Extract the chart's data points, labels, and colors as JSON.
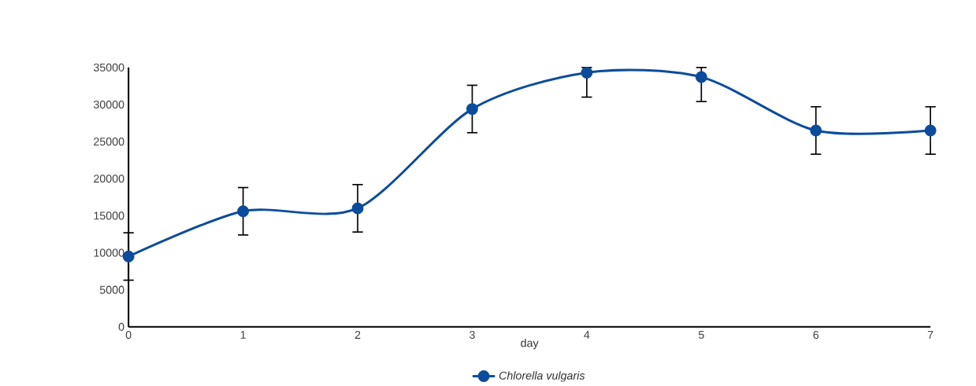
{
  "chart_data": {
    "type": "line",
    "xlabel": "day",
    "x": [
      0,
      1,
      2,
      3,
      4,
      5,
      6,
      7
    ],
    "series": [
      {
        "name": "*Chlorella vulgaris*",
        "color": "#0b4c9c",
        "values": [
          9500,
          15600,
          16000,
          29400,
          34300,
          33700,
          26500,
          26500
        ],
        "errors": [
          3200,
          3200,
          3200,
          3200,
          [
            31000,
            35000
          ],
          [
            30400,
            35000
          ],
          3200,
          3200
        ]
      }
    ],
    "xlim": [
      0,
      7
    ],
    "xticks": [
      0,
      1,
      2,
      3,
      4,
      5,
      6,
      7
    ],
    "ylim": [
      0,
      35000
    ],
    "yticks": [
      0,
      5000,
      10000,
      15000,
      20000,
      25000,
      30000,
      35000
    ],
    "marker": "circle",
    "legend": "bottom"
  }
}
